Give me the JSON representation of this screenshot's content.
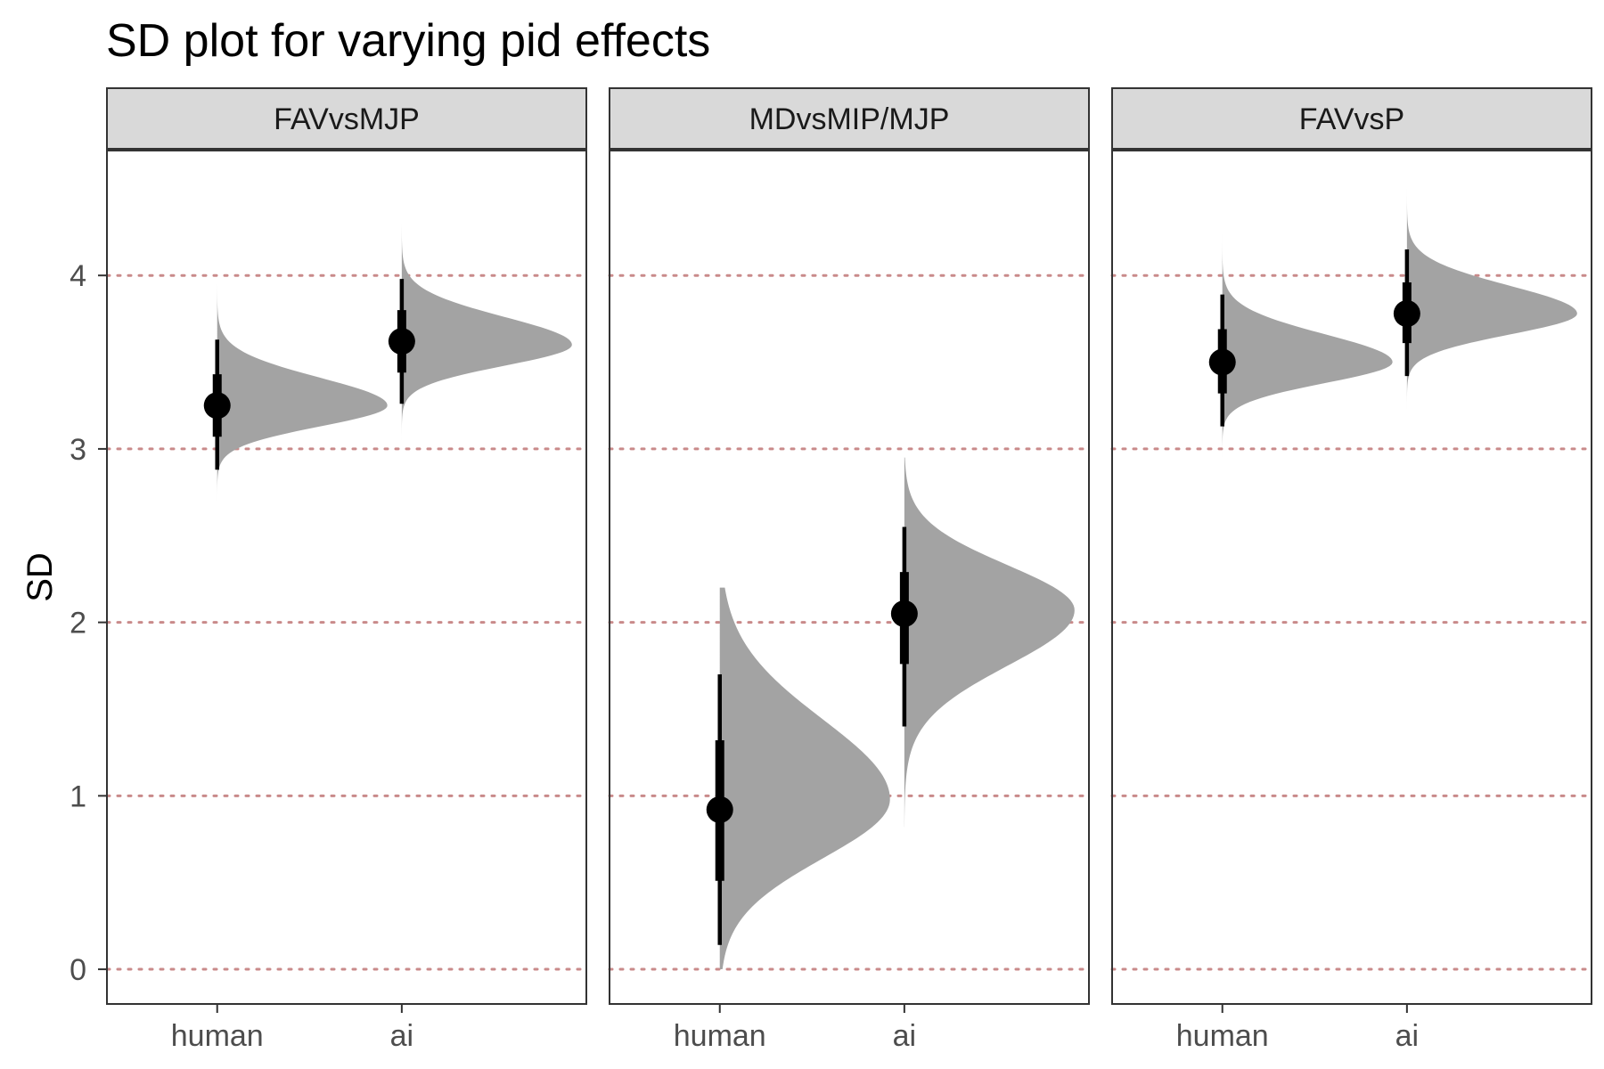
{
  "chart_data": {
    "type": "halfeye",
    "title": "SD plot for varying pid effects",
    "ylabel": "SD",
    "xlabel": "",
    "ylim": [
      -0.2,
      4.72
    ],
    "y_ticks": [
      0,
      1,
      2,
      3,
      4
    ],
    "categories": [
      "human",
      "ai"
    ],
    "grid": {
      "horizontal": "dotted",
      "color": "#c98a8a"
    },
    "colors": {
      "density": "#a3a3a3",
      "point": "#000000",
      "strip_fill": "#d9d9d9",
      "border": "#333333"
    },
    "facets": [
      {
        "name": "FAVvsMJP",
        "groups": [
          {
            "category": "human",
            "mode": 3.25,
            "density_min": 2.5,
            "density_max": 3.95,
            "sd_left": 0.12,
            "sd_right": 0.16,
            "interval_66": [
              3.07,
              3.43
            ],
            "interval_95": [
              2.88,
              3.63
            ]
          },
          {
            "category": "ai",
            "mode": 3.6,
            "point": 3.62,
            "density_min": 2.88,
            "density_max": 4.3,
            "sd_left": 0.12,
            "sd_right": 0.16,
            "interval_66": [
              3.44,
              3.8
            ],
            "interval_95": [
              3.26,
              3.98
            ]
          }
        ]
      },
      {
        "name": "MDvsMIP/MJP",
        "groups": [
          {
            "category": "human",
            "mode": 0.98,
            "point": 0.92,
            "density_min": 0.0,
            "density_max": 2.2,
            "sd_left": 0.34,
            "sd_right": 0.46,
            "interval_66": [
              0.51,
              1.32
            ],
            "interval_95": [
              0.14,
              1.7
            ]
          },
          {
            "category": "ai",
            "mode": 2.07,
            "point": 2.05,
            "density_min": 0.82,
            "density_max": 2.95,
            "sd_left": 0.32,
            "sd_right": 0.26,
            "interval_66": [
              1.76,
              2.29
            ],
            "interval_95": [
              1.4,
              2.55
            ]
          }
        ]
      },
      {
        "name": "FAVvsP",
        "groups": [
          {
            "category": "human",
            "mode": 3.5,
            "density_min": 2.7,
            "density_max": 4.3,
            "sd_left": 0.12,
            "sd_right": 0.16,
            "interval_66": [
              3.32,
              3.69
            ],
            "interval_95": [
              3.13,
              3.89
            ]
          },
          {
            "category": "ai",
            "mode": 3.78,
            "density_min": 3.1,
            "density_max": 4.5,
            "sd_left": 0.12,
            "sd_right": 0.16,
            "interval_66": [
              3.61,
              3.96
            ],
            "interval_95": [
              3.42,
              4.15
            ]
          }
        ]
      }
    ]
  }
}
